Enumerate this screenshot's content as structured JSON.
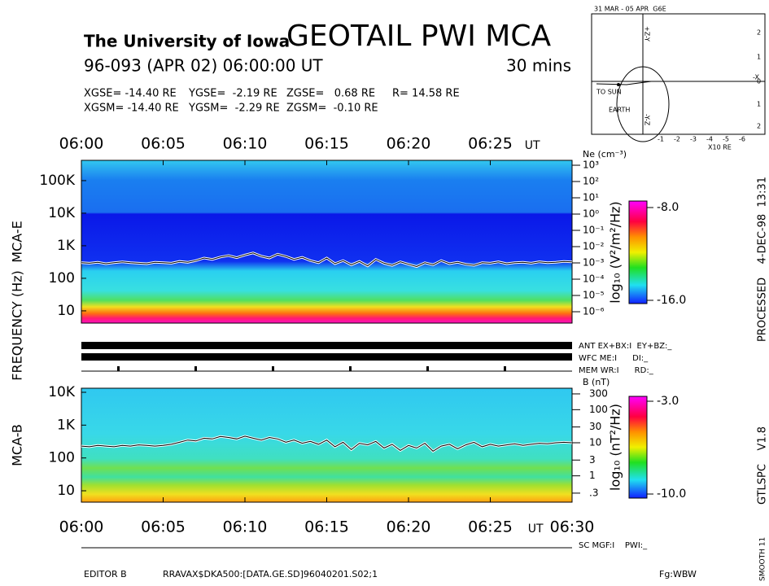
{
  "header": {
    "institution": "The University of Iowa",
    "title": "GEOTAIL PWI MCA",
    "date": "96-093 (APR 02) 06:00:00 UT",
    "duration": "30 mins"
  },
  "position": {
    "gse": [
      "XGSE= -14.40 RE",
      "YGSE=  -2.19 RE",
      "ZGSE=   0.68 RE",
      "R= 14.58 RE"
    ],
    "gsm": [
      "XGSM= -14.40 RE",
      "YGSM=  -2.29 RE",
      "ZGSM=  -0.10 RE"
    ]
  },
  "orbit": {
    "title": "31 MAR - 05 APR  G6E",
    "top_axis": "+Z-Y",
    "bottom_axis": "-Y-Z",
    "x_axis": "-X",
    "sun": "TO SUN",
    "earth": "EARTH",
    "x_ticks": [
      "-1",
      "-2",
      "-3",
      "-4",
      "-5",
      "-6"
    ],
    "unit": "X10 RE",
    "side_ticks": [
      "2",
      "1",
      "0",
      "1",
      "2"
    ]
  },
  "y_label": "FREQUENCY (Hz)",
  "mode": {
    "ant": "ANT EX+BX:I  EY+BZ:_",
    "wfc": "WFC ME:I      DI:_",
    "mem": "MEM WR:I      RD:_",
    "sc": "SC MGF:I    PWI:_"
  },
  "side": {
    "processed": "PROCESSED    4-DEC-98  13:31",
    "version": "GTLSPC    V1.8",
    "smooth": "SMOOTH 11"
  },
  "footer": {
    "editor": "EDITOR B",
    "file": "RRAVAX$DKA500:[DATA.GE.SD]96040201.S02;1",
    "fg": "Fg:WBW"
  },
  "chart_data": [
    {
      "type": "spectrogram",
      "panel_label": "MCA-E",
      "x_axis_side": "top",
      "x_unit": "UT",
      "xlim": [
        0,
        30
      ],
      "xticks": [
        {
          "value": 0,
          "label": "06:00"
        },
        {
          "value": 5,
          "label": "06:05"
        },
        {
          "value": 10,
          "label": "06:10"
        },
        {
          "value": 15,
          "label": "06:15"
        },
        {
          "value": 20,
          "label": "06:20"
        },
        {
          "value": 25,
          "label": "06:25"
        }
      ],
      "ylim": [
        4.2,
        420000
      ],
      "log_y": true,
      "yticks": [
        {
          "value": 100000,
          "label": "100K"
        },
        {
          "value": 10000,
          "label": "10K"
        },
        {
          "value": 1000,
          "label": "1K"
        },
        100,
        10
      ],
      "y2_label": "Ne (cm⁻³)",
      "y2lim": [
        2e-07,
        2000
      ],
      "log_y2": true,
      "y2ticks": [
        {
          "value": 1000,
          "label": "10³"
        },
        {
          "value": 100,
          "label": "10²"
        },
        {
          "value": 10,
          "label": "10¹"
        },
        {
          "value": 1,
          "label": "10⁰"
        },
        {
          "value": 0.1,
          "label": "10⁻¹"
        },
        {
          "value": 0.01,
          "label": "10⁻²"
        },
        {
          "value": 0.001,
          "label": "10⁻³"
        },
        {
          "value": 0.0001,
          "label": "10⁻⁴"
        },
        {
          "value": 1e-05,
          "label": "10⁻⁵"
        },
        {
          "value": 1e-06,
          "label": "10⁻⁶"
        }
      ],
      "colorbar": {
        "label": "log₁₀ (V²/m²/Hz)",
        "clim": [
          -16,
          -8
        ],
        "ticks": [
          {
            "value": -8,
            "label": "-8.0"
          },
          {
            "value": -16,
            "label": "-16.0"
          }
        ]
      },
      "x": [
        0,
        0.5,
        1,
        1.5,
        2,
        2.5,
        3,
        3.5,
        4,
        4.5,
        5,
        5.5,
        6,
        6.5,
        7,
        7.5,
        8,
        8.5,
        9,
        9.5,
        10,
        10.5,
        11,
        11.5,
        12,
        12.5,
        13,
        13.5,
        14,
        14.5,
        15,
        15.5,
        16,
        16.5,
        17,
        17.5,
        18,
        18.5,
        19,
        19.5,
        20,
        20.5,
        21,
        21.5,
        22,
        22.5,
        23,
        23.5,
        24,
        24.5,
        25,
        25.5,
        26,
        26.5,
        27,
        27.5,
        28,
        28.5,
        29,
        29.5,
        30
      ],
      "series": [
        {
          "color": "#000000",
          "values": [
            300,
            290,
            310,
            280,
            300,
            320,
            300,
            290,
            280,
            310,
            300,
            290,
            330,
            310,
            350,
            420,
            380,
            450,
            500,
            430,
            520,
            600,
            480,
            420,
            550,
            470,
            380,
            440,
            350,
            300,
            420,
            280,
            350,
            260,
            330,
            240,
            380,
            290,
            250,
            320,
            270,
            230,
            300,
            260,
            350,
            280,
            310,
            270,
            250,
            300,
            290,
            320,
            280,
            300,
            310,
            290,
            320,
            300,
            310,
            330,
            320
          ]
        }
      ]
    },
    {
      "type": "spectrogram",
      "panel_label": "MCA-B",
      "x_axis_side": "bottom",
      "x_unit": "UT",
      "xlim": [
        0,
        30
      ],
      "xticks": [
        {
          "value": 0,
          "label": "06:00"
        },
        {
          "value": 5,
          "label": "06:05"
        },
        {
          "value": 10,
          "label": "06:10"
        },
        {
          "value": 15,
          "label": "06:15"
        },
        {
          "value": 20,
          "label": "06:20"
        },
        {
          "value": 25,
          "label": "06:25"
        },
        {
          "value": 30,
          "label": "06:30"
        }
      ],
      "ylim": [
        4.5,
        13300
      ],
      "log_y": true,
      "yticks": [
        {
          "value": 10000,
          "label": "10K"
        },
        {
          "value": 1000,
          "label": "1K"
        },
        100,
        10
      ],
      "y2_label": "B (nT)",
      "y2lim": [
        0.16,
        445
      ],
      "log_y2": true,
      "y2ticks": [
        300,
        100,
        30,
        10,
        3,
        1,
        {
          "value": 0.3,
          "label": ".3"
        }
      ],
      "colorbar": {
        "label": "log₁₀ (nT²/Hz)",
        "clim": [
          -10,
          -3
        ],
        "ticks": [
          {
            "value": -3,
            "label": "-3.0"
          },
          {
            "value": -10,
            "label": "-10.0"
          }
        ]
      },
      "x": [
        0,
        0.5,
        1,
        1.5,
        2,
        2.5,
        3,
        3.5,
        4,
        4.5,
        5,
        5.5,
        6,
        6.5,
        7,
        7.5,
        8,
        8.5,
        9,
        9.5,
        10,
        10.5,
        11,
        11.5,
        12,
        12.5,
        13,
        13.5,
        14,
        14.5,
        15,
        15.5,
        16,
        16.5,
        17,
        17.5,
        18,
        18.5,
        19,
        19.5,
        20,
        20.5,
        21,
        21.5,
        22,
        22.5,
        23,
        23.5,
        24,
        24.5,
        25,
        25.5,
        26,
        26.5,
        27,
        27.5,
        28,
        28.5,
        29,
        29.5,
        30
      ],
      "series": [
        {
          "color": "#000000",
          "values": [
            230,
            220,
            240,
            230,
            220,
            240,
            230,
            250,
            240,
            230,
            240,
            260,
            300,
            350,
            330,
            400,
            380,
            450,
            420,
            380,
            460,
            400,
            350,
            420,
            380,
            300,
            350,
            280,
            320,
            260,
            350,
            220,
            300,
            180,
            280,
            250,
            320,
            200,
            260,
            170,
            240,
            200,
            280,
            160,
            230,
            260,
            190,
            250,
            300,
            220,
            260,
            230,
            250,
            270,
            240,
            260,
            280,
            270,
            290,
            300,
            290
          ]
        }
      ]
    }
  ]
}
